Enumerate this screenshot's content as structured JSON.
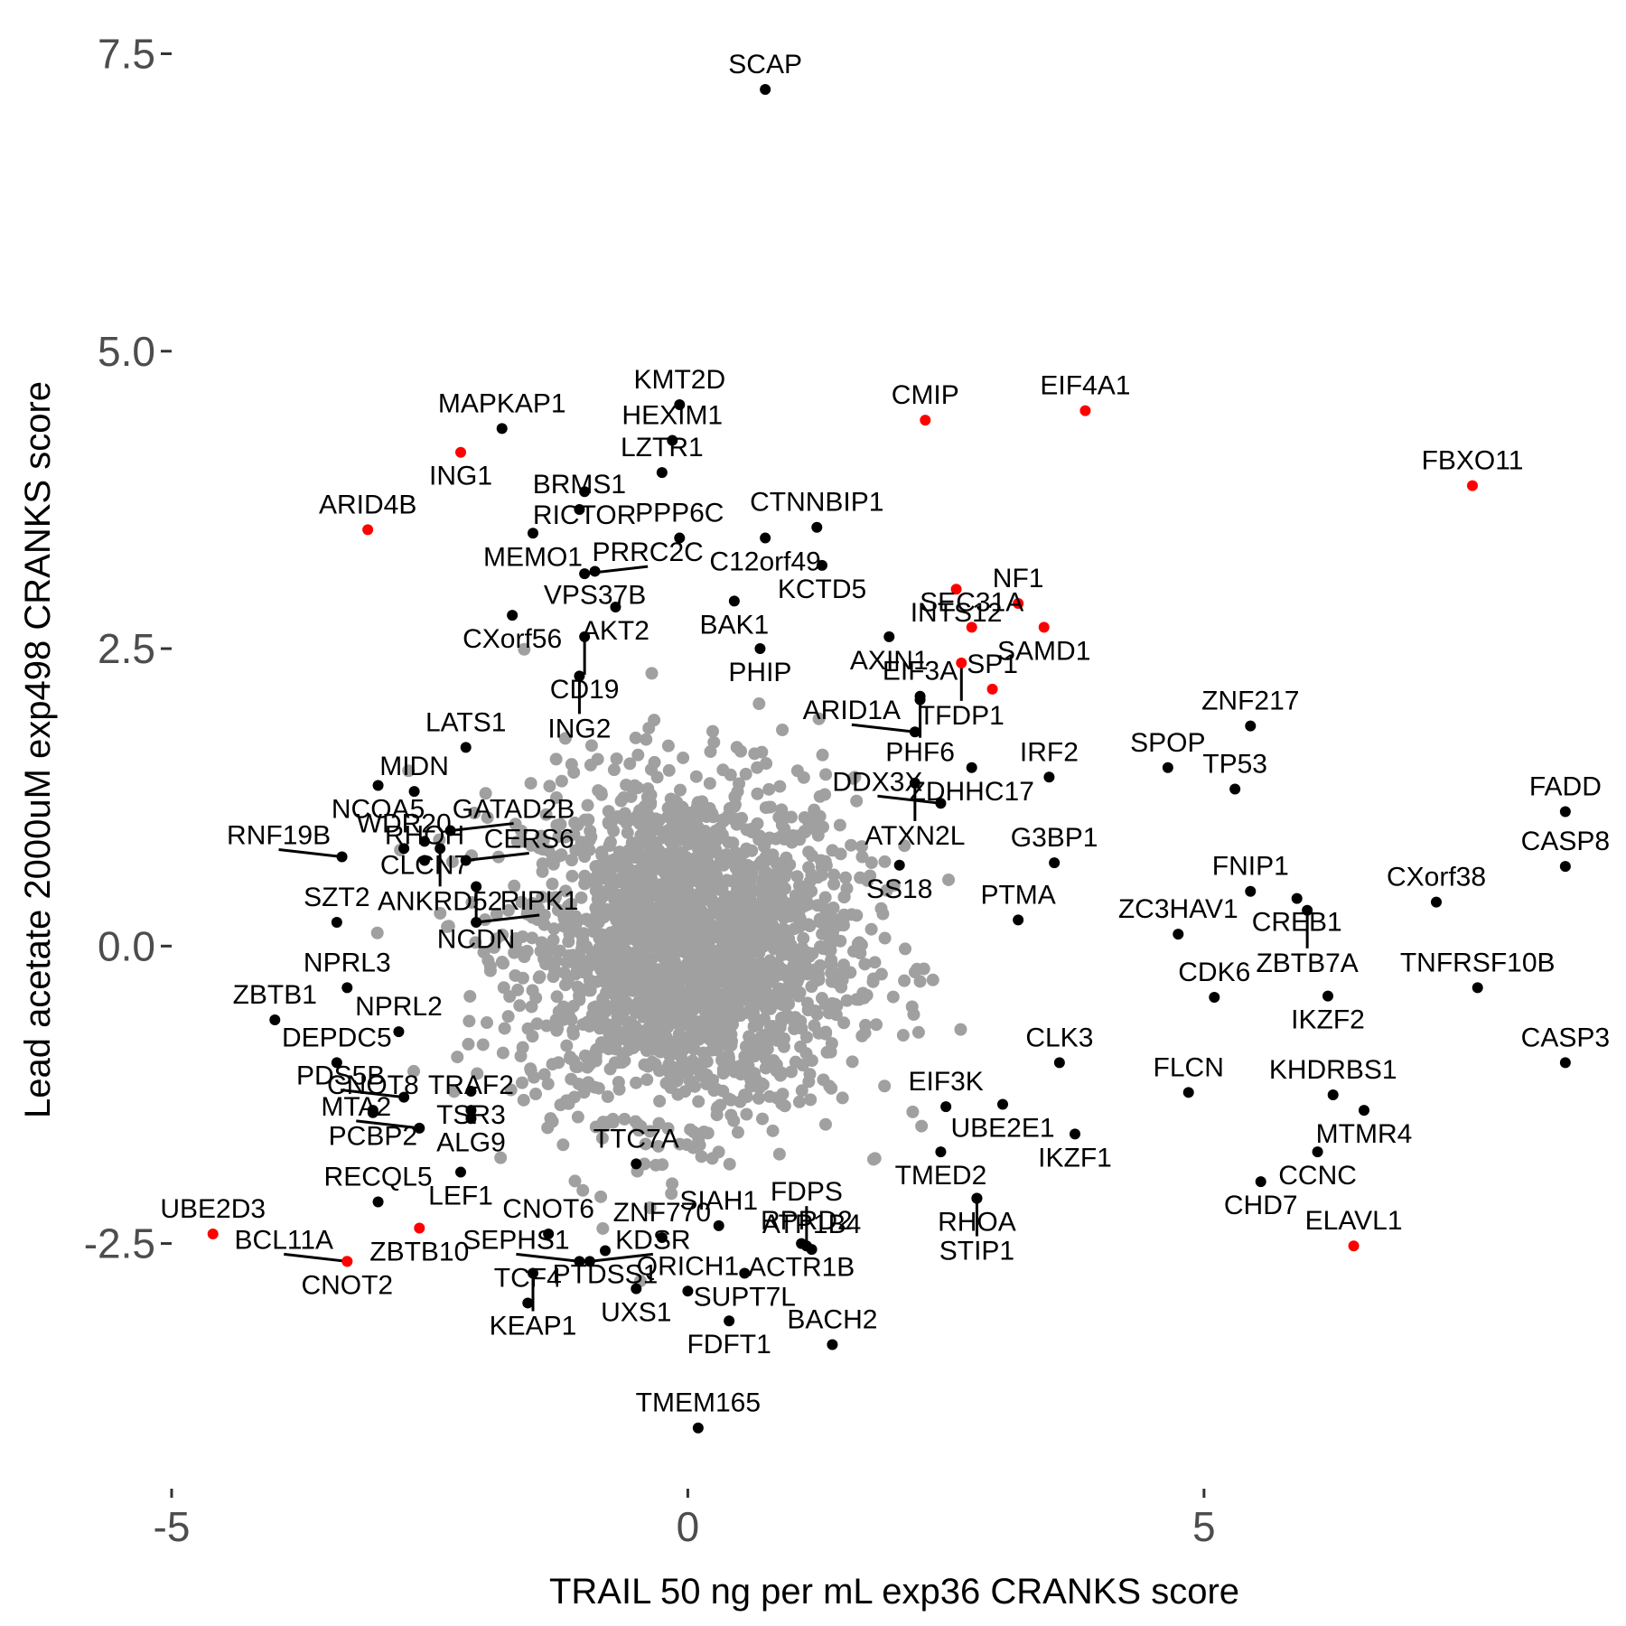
{
  "chart_data": {
    "type": "scatter",
    "title": "",
    "xlabel": "TRAIL 50 ng per mL exp36 CRANKS score",
    "ylabel": "Lead acetate 2000uM exp498 CRANKS score",
    "xlim": [
      -5.0,
      9.0
    ],
    "ylim": [
      -4.5,
      7.8
    ],
    "x_ticks": [
      -5,
      0,
      5
    ],
    "x_tick_labels": [
      "-5",
      "0",
      "5"
    ],
    "y_ticks": [
      -2.5,
      0.0,
      2.5,
      5.0,
      7.5
    ],
    "y_tick_labels": [
      "-2.5",
      "0.0",
      "2.5",
      "5.0",
      "7.5"
    ],
    "grid": false,
    "legend": "none",
    "colors": {
      "background_points": "#a0a0a0",
      "highlight": "#000000",
      "red": "#ff0000"
    },
    "background_cloud": {
      "description_points": 8000,
      "center": [
        0.0,
        0.0
      ],
      "sd_x": 0.8,
      "sd_y": 0.7
    },
    "labeled_points": [
      {
        "label": "SCAP",
        "x": 0.75,
        "y": 7.2,
        "color": "black"
      },
      {
        "label": "KMT2D",
        "x": -0.08,
        "y": 4.55,
        "color": "black"
      },
      {
        "label": "MAPKAP1",
        "x": -1.8,
        "y": 4.35,
        "color": "black"
      },
      {
        "label": "ING1",
        "x": -2.2,
        "y": 4.15,
        "color": "red"
      },
      {
        "label": "HEXIM1",
        "x": -0.15,
        "y": 4.25,
        "color": "black"
      },
      {
        "label": "LZTR1",
        "x": -0.25,
        "y": 3.98,
        "color": "black"
      },
      {
        "label": "CMIP",
        "x": 2.3,
        "y": 4.42,
        "color": "red"
      },
      {
        "label": "EIF4A1",
        "x": 3.85,
        "y": 4.5,
        "color": "red"
      },
      {
        "label": "FBXO11",
        "x": 7.6,
        "y": 3.87,
        "color": "red"
      },
      {
        "label": "RICTOR",
        "x": -1.0,
        "y": 3.82,
        "color": "black"
      },
      {
        "label": "BRMS1",
        "x": -1.05,
        "y": 3.67,
        "color": "black"
      },
      {
        "label": "ARID4B",
        "x": -3.1,
        "y": 3.5,
        "color": "red"
      },
      {
        "label": "MEMO1",
        "x": -1.5,
        "y": 3.47,
        "color": "black"
      },
      {
        "label": "PPP6C",
        "x": -0.08,
        "y": 3.43,
        "color": "black"
      },
      {
        "label": "C12orf49",
        "x": 0.75,
        "y": 3.43,
        "color": "black"
      },
      {
        "label": "CTNNBIP1",
        "x": 1.25,
        "y": 3.52,
        "color": "black"
      },
      {
        "label": "KCTD5",
        "x": 1.3,
        "y": 3.2,
        "color": "black"
      },
      {
        "label": "NF1",
        "x": 3.2,
        "y": 2.88,
        "color": "red"
      },
      {
        "label": "INTS12",
        "x": 2.6,
        "y": 3.0,
        "color": "red"
      },
      {
        "label": "SAMD1",
        "x": 3.45,
        "y": 2.68,
        "color": "red"
      },
      {
        "label": "VPS37B",
        "x": -0.9,
        "y": 3.15,
        "color": "black"
      },
      {
        "label": "BAK1",
        "x": 0.45,
        "y": 2.9,
        "color": "black"
      },
      {
        "label": "PRRC2C",
        "x": -1.0,
        "y": 3.13,
        "color": "black"
      },
      {
        "label": "AKT2",
        "x": -0.7,
        "y": 2.85,
        "color": "black"
      },
      {
        "label": "AXIN1",
        "x": 1.95,
        "y": 2.6,
        "color": "black"
      },
      {
        "label": "CXorf56",
        "x": -1.7,
        "y": 2.78,
        "color": "black"
      },
      {
        "label": "PHIP",
        "x": 0.7,
        "y": 2.5,
        "color": "black"
      },
      {
        "label": "SEC31A",
        "x": 2.75,
        "y": 2.68,
        "color": "red"
      },
      {
        "label": "CD19",
        "x": -1.0,
        "y": 2.6,
        "color": "black"
      },
      {
        "label": "TFDP1",
        "x": 2.65,
        "y": 2.38,
        "color": "red"
      },
      {
        "label": "SP1",
        "x": 2.95,
        "y": 2.16,
        "color": "red"
      },
      {
        "label": "PHF6",
        "x": 2.25,
        "y": 2.07,
        "color": "black"
      },
      {
        "label": "ZNF217",
        "x": 5.45,
        "y": 1.85,
        "color": "black"
      },
      {
        "label": "LATS1",
        "x": -2.15,
        "y": 1.67,
        "color": "black"
      },
      {
        "label": "ING2",
        "x": -1.05,
        "y": 2.27,
        "color": "black"
      },
      {
        "label": "MIDN",
        "x": -2.65,
        "y": 1.3,
        "color": "black"
      },
      {
        "label": "EIF3A",
        "x": 2.25,
        "y": 2.1,
        "color": "black"
      },
      {
        "label": "ARID1A",
        "x": 2.2,
        "y": 1.8,
        "color": "black"
      },
      {
        "label": "SPOP",
        "x": 4.65,
        "y": 1.5,
        "color": "black"
      },
      {
        "label": "ZDHHC17",
        "x": 2.75,
        "y": 1.5,
        "color": "black"
      },
      {
        "label": "NCOA5",
        "x": -3.0,
        "y": 1.35,
        "color": "black"
      },
      {
        "label": "CLCN7",
        "x": -2.55,
        "y": 0.88,
        "color": "black"
      },
      {
        "label": "FADD",
        "x": 8.5,
        "y": 1.13,
        "color": "black"
      },
      {
        "label": "ATXN2L",
        "x": 2.2,
        "y": 1.37,
        "color": "black"
      },
      {
        "label": "IRF2",
        "x": 3.5,
        "y": 1.42,
        "color": "black"
      },
      {
        "label": "TP53",
        "x": 5.3,
        "y": 1.32,
        "color": "black"
      },
      {
        "label": "GATAD2B",
        "x": -2.3,
        "y": 0.97,
        "color": "black"
      },
      {
        "label": "ANKRD52",
        "x": -2.4,
        "y": 0.82,
        "color": "black"
      },
      {
        "label": "DDX3X",
        "x": 2.45,
        "y": 1.2,
        "color": "black"
      },
      {
        "label": "CASP8",
        "x": 8.5,
        "y": 0.67,
        "color": "black"
      },
      {
        "label": "WDR20",
        "x": -2.75,
        "y": 0.82,
        "color": "black"
      },
      {
        "label": "CERS6",
        "x": -2.15,
        "y": 0.72,
        "color": "black"
      },
      {
        "label": "SS18",
        "x": 2.05,
        "y": 0.68,
        "color": "black"
      },
      {
        "label": "G3BP1",
        "x": 3.55,
        "y": 0.7,
        "color": "black"
      },
      {
        "label": "FNIP1",
        "x": 5.45,
        "y": 0.46,
        "color": "black"
      },
      {
        "label": "CREB1",
        "x": 5.9,
        "y": 0.4,
        "color": "black"
      },
      {
        "label": "CXorf38",
        "x": 7.25,
        "y": 0.37,
        "color": "black"
      },
      {
        "label": "RNF19B",
        "x": -3.35,
        "y": 0.75,
        "color": "black"
      },
      {
        "label": "RHOH",
        "x": -2.55,
        "y": 0.72,
        "color": "black"
      },
      {
        "label": "NCDN",
        "x": -2.05,
        "y": 0.5,
        "color": "black"
      },
      {
        "label": "PTMA",
        "x": 3.2,
        "y": 0.22,
        "color": "black"
      },
      {
        "label": "ZBTB7A",
        "x": 6.0,
        "y": 0.3,
        "color": "black"
      },
      {
        "label": "SZT2",
        "x": -3.4,
        "y": 0.2,
        "color": "black"
      },
      {
        "label": "RIPK1",
        "x": -2.05,
        "y": 0.2,
        "color": "black"
      },
      {
        "label": "ZC3HAV1",
        "x": 4.75,
        "y": 0.1,
        "color": "black"
      },
      {
        "label": "TNFRSF10B",
        "x": 7.65,
        "y": -0.35,
        "color": "black"
      },
      {
        "label": "NPRL3",
        "x": -3.3,
        "y": -0.35,
        "color": "black"
      },
      {
        "label": "CDK6",
        "x": 5.1,
        "y": -0.43,
        "color": "black"
      },
      {
        "label": "IKZF2",
        "x": 6.2,
        "y": -0.42,
        "color": "black"
      },
      {
        "label": "NPRL2",
        "x": -2.8,
        "y": -0.72,
        "color": "black"
      },
      {
        "label": "ZBTB1",
        "x": -4.0,
        "y": -0.62,
        "color": "black"
      },
      {
        "label": "TRAF2",
        "x": -2.1,
        "y": -1.38,
        "color": "black"
      },
      {
        "label": "TSR3",
        "x": -2.1,
        "y": -1.22,
        "color": "black"
      },
      {
        "label": "CLK3",
        "x": 3.6,
        "y": -0.98,
        "color": "black"
      },
      {
        "label": "KHDRBS1",
        "x": 6.25,
        "y": -1.25,
        "color": "black"
      },
      {
        "label": "CASP3",
        "x": 8.5,
        "y": -0.98,
        "color": "black"
      },
      {
        "label": "DEPDC5",
        "x": -3.4,
        "y": -0.98,
        "color": "black"
      },
      {
        "label": "PDS5B",
        "x": -2.75,
        "y": -1.27,
        "color": "black"
      },
      {
        "label": "ALG9",
        "x": -2.1,
        "y": -1.45,
        "color": "black"
      },
      {
        "label": "SIAH1",
        "x": 0.3,
        "y": -2.35,
        "color": "black"
      },
      {
        "label": "EIF3K",
        "x": 2.5,
        "y": -1.35,
        "color": "black"
      },
      {
        "label": "UBE2E1",
        "x": 3.05,
        "y": -1.33,
        "color": "black"
      },
      {
        "label": "FLCN",
        "x": 4.85,
        "y": -1.23,
        "color": "black"
      },
      {
        "label": "MTMR4",
        "x": 6.55,
        "y": -1.38,
        "color": "black"
      },
      {
        "label": "CCNC",
        "x": 6.1,
        "y": -1.73,
        "color": "black"
      },
      {
        "label": "PCBP2",
        "x": -3.05,
        "y": -1.4,
        "color": "black"
      },
      {
        "label": "MTA2",
        "x": -2.6,
        "y": -1.53,
        "color": "black"
      },
      {
        "label": "TTC7A",
        "x": -0.5,
        "y": -1.83,
        "color": "black"
      },
      {
        "label": "TMED2",
        "x": 2.45,
        "y": -1.73,
        "color": "black"
      },
      {
        "label": "IKZF1",
        "x": 3.75,
        "y": -1.58,
        "color": "black"
      },
      {
        "label": "RHOA",
        "x": 2.8,
        "y": -2.12,
        "color": "black"
      },
      {
        "label": "CHD7",
        "x": 5.55,
        "y": -1.98,
        "color": "black"
      },
      {
        "label": "CNOT8",
        "x": -3.05,
        "y": -1.38,
        "color": "black"
      },
      {
        "label": "RECQL5",
        "x": -3.0,
        "y": -2.15,
        "color": "black"
      },
      {
        "label": "LEF1",
        "x": -2.2,
        "y": -1.9,
        "color": "black"
      },
      {
        "label": "CNOT6",
        "x": -1.35,
        "y": -2.42,
        "color": "black"
      },
      {
        "label": "PTDSS1",
        "x": -0.8,
        "y": -2.56,
        "color": "black"
      },
      {
        "label": "ZNF770",
        "x": -0.25,
        "y": -2.45,
        "color": "black"
      },
      {
        "label": "ACTR1B",
        "x": 1.1,
        "y": -2.5,
        "color": "black"
      },
      {
        "label": "RPRD2",
        "x": 1.15,
        "y": -2.52,
        "color": "black"
      },
      {
        "label": "UBE2D3",
        "x": -4.6,
        "y": -2.42,
        "color": "red"
      },
      {
        "label": "ZBTB10",
        "x": -2.6,
        "y": -2.37,
        "color": "red"
      },
      {
        "label": "STIP1",
        "x": 2.8,
        "y": -2.12,
        "color": "black"
      },
      {
        "label": "ELAVL1",
        "x": 6.45,
        "y": -2.52,
        "color": "red"
      },
      {
        "label": "FDPS",
        "x": 1.15,
        "y": -2.52,
        "color": "black"
      },
      {
        "label": "CNOT2",
        "x": -3.3,
        "y": -2.65,
        "color": "red"
      },
      {
        "label": "SEPHS1",
        "x": -1.05,
        "y": -2.65,
        "color": "black"
      },
      {
        "label": "SUPT7L",
        "x": 0.55,
        "y": -2.75,
        "color": "black"
      },
      {
        "label": "ATP1B4",
        "x": 1.2,
        "y": -2.55,
        "color": "black"
      },
      {
        "label": "BCL11A",
        "x": -3.3,
        "y": -2.65,
        "color": "red"
      },
      {
        "label": "KEAP1",
        "x": -1.5,
        "y": -2.75,
        "color": "black"
      },
      {
        "label": "UXS1",
        "x": -0.5,
        "y": -2.88,
        "color": "black"
      },
      {
        "label": "FDFT1",
        "x": 0.4,
        "y": -3.15,
        "color": "black"
      },
      {
        "label": "TCF4",
        "x": -1.55,
        "y": -3.0,
        "color": "black"
      },
      {
        "label": "KDSR",
        "x": -0.95,
        "y": -2.65,
        "color": "black"
      },
      {
        "label": "QRICH1",
        "x": 0.0,
        "y": -2.9,
        "color": "black"
      },
      {
        "label": "BACH2",
        "x": 1.4,
        "y": -3.35,
        "color": "black"
      },
      {
        "label": "TMEM165",
        "x": 0.1,
        "y": -4.05,
        "color": "black"
      }
    ]
  }
}
